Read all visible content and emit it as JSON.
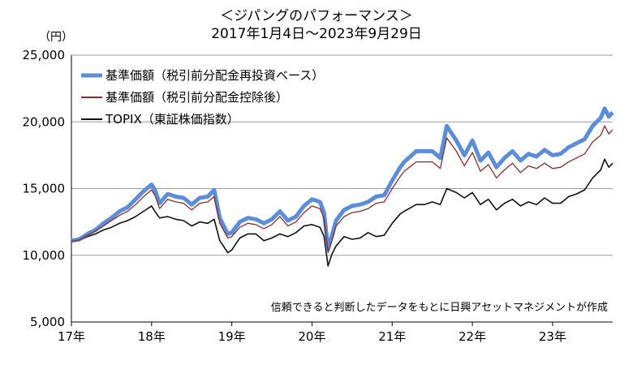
{
  "chart_data": {
    "type": "line",
    "title": "＜ジパングのパフォーマンス＞",
    "subtitle": "2017年1月4日～2023年9月29日",
    "unit_label": "（円）",
    "source_note": "信頼できると判断したデータをもとに日興アセットマネジメントが作成",
    "ylim": [
      5000,
      25000
    ],
    "yticks": [
      5000,
      10000,
      15000,
      20000,
      25000
    ],
    "ytick_labels": [
      "5,000",
      "10,000",
      "15,000",
      "20,000",
      "25,000"
    ],
    "xlim": [
      2017.0,
      2023.75
    ],
    "xticks": [
      2017,
      2018,
      2019,
      2020,
      2021,
      2022,
      2023
    ],
    "xtick_labels": [
      "17年",
      "18年",
      "19年",
      "20年",
      "21年",
      "22年",
      "23年"
    ],
    "grid": "horizontal",
    "legend_position": "top-left",
    "x": [
      2017.0,
      2017.1,
      2017.2,
      2017.3,
      2017.4,
      2017.5,
      2017.6,
      2017.7,
      2017.8,
      2017.9,
      2018.0,
      2018.04,
      2018.1,
      2018.2,
      2018.3,
      2018.4,
      2018.5,
      2018.6,
      2018.7,
      2018.78,
      2018.85,
      2018.95,
      2019.0,
      2019.1,
      2019.2,
      2019.3,
      2019.4,
      2019.5,
      2019.6,
      2019.7,
      2019.8,
      2019.9,
      2020.0,
      2020.1,
      2020.15,
      2020.2,
      2020.25,
      2020.3,
      2020.4,
      2020.5,
      2020.6,
      2020.7,
      2020.8,
      2020.9,
      2021.0,
      2021.1,
      2021.15,
      2021.3,
      2021.4,
      2021.5,
      2021.6,
      2021.68,
      2021.8,
      2021.9,
      2022.0,
      2022.1,
      2022.2,
      2022.3,
      2022.4,
      2022.5,
      2022.6,
      2022.7,
      2022.8,
      2022.9,
      2023.0,
      2023.1,
      2023.2,
      2023.3,
      2023.4,
      2023.5,
      2023.6,
      2023.65,
      2023.7,
      2023.75
    ],
    "series": [
      {
        "name": "基準価額（税引前分配金再投資ベース）",
        "color": "#5b8dd9",
        "width": 5,
        "values": [
          11100,
          11200,
          11600,
          11900,
          12400,
          12800,
          13300,
          13600,
          14200,
          14800,
          15300,
          14900,
          13900,
          14600,
          14400,
          14300,
          13800,
          14300,
          14400,
          14900,
          12800,
          11600,
          11700,
          12500,
          12800,
          12700,
          12400,
          12700,
          13300,
          12600,
          12900,
          13700,
          14200,
          14000,
          13200,
          10500,
          11500,
          12600,
          13400,
          13700,
          13800,
          14000,
          14400,
          14500,
          15600,
          16600,
          17000,
          17800,
          17800,
          17800,
          17300,
          19700,
          18600,
          17500,
          18600,
          17100,
          17700,
          16600,
          17300,
          17800,
          17100,
          17600,
          17400,
          17900,
          17500,
          17600,
          18100,
          18400,
          18700,
          19700,
          20300,
          21000,
          20400,
          20700
        ]
      },
      {
        "name": "基準価額（税引前分配金控除後）",
        "color": "#8b2a2a",
        "width": 1.3,
        "values": [
          11050,
          11150,
          11500,
          11800,
          12200,
          12600,
          13000,
          13300,
          13800,
          14400,
          14900,
          14500,
          13500,
          14200,
          14000,
          13900,
          13400,
          13900,
          14000,
          14400,
          12400,
          11300,
          11400,
          12100,
          12400,
          12300,
          12000,
          12300,
          12900,
          12200,
          12500,
          13200,
          13700,
          13500,
          12800,
          10200,
          11100,
          12200,
          12900,
          13200,
          13300,
          13500,
          13900,
          14000,
          15000,
          15900,
          16300,
          17000,
          17000,
          17000,
          16500,
          18800,
          17800,
          16700,
          17700,
          16300,
          16800,
          15800,
          16400,
          16900,
          16200,
          16700,
          16500,
          16900,
          16500,
          16600,
          17000,
          17300,
          17600,
          18500,
          19000,
          19700,
          19100,
          19400
        ]
      },
      {
        "name": "TOPIX（東証株価指数）",
        "color": "#111111",
        "width": 1.6,
        "values": [
          11000,
          11100,
          11400,
          11600,
          11900,
          12100,
          12400,
          12600,
          12900,
          13300,
          13700,
          13300,
          12800,
          12900,
          12700,
          12600,
          12200,
          12500,
          12400,
          12700,
          11100,
          10200,
          10400,
          11300,
          11600,
          11600,
          11100,
          11300,
          11600,
          11400,
          11700,
          12200,
          12300,
          12100,
          11400,
          9200,
          10100,
          10700,
          11400,
          11200,
          11300,
          11700,
          11400,
          11500,
          12400,
          13100,
          13300,
          13800,
          13800,
          14000,
          13800,
          15000,
          14700,
          14300,
          14700,
          13800,
          14200,
          13400,
          13900,
          14200,
          13700,
          14000,
          13800,
          14300,
          13900,
          13900,
          14400,
          14600,
          14900,
          15800,
          16400,
          17200,
          16600,
          16900
        ]
      }
    ]
  }
}
